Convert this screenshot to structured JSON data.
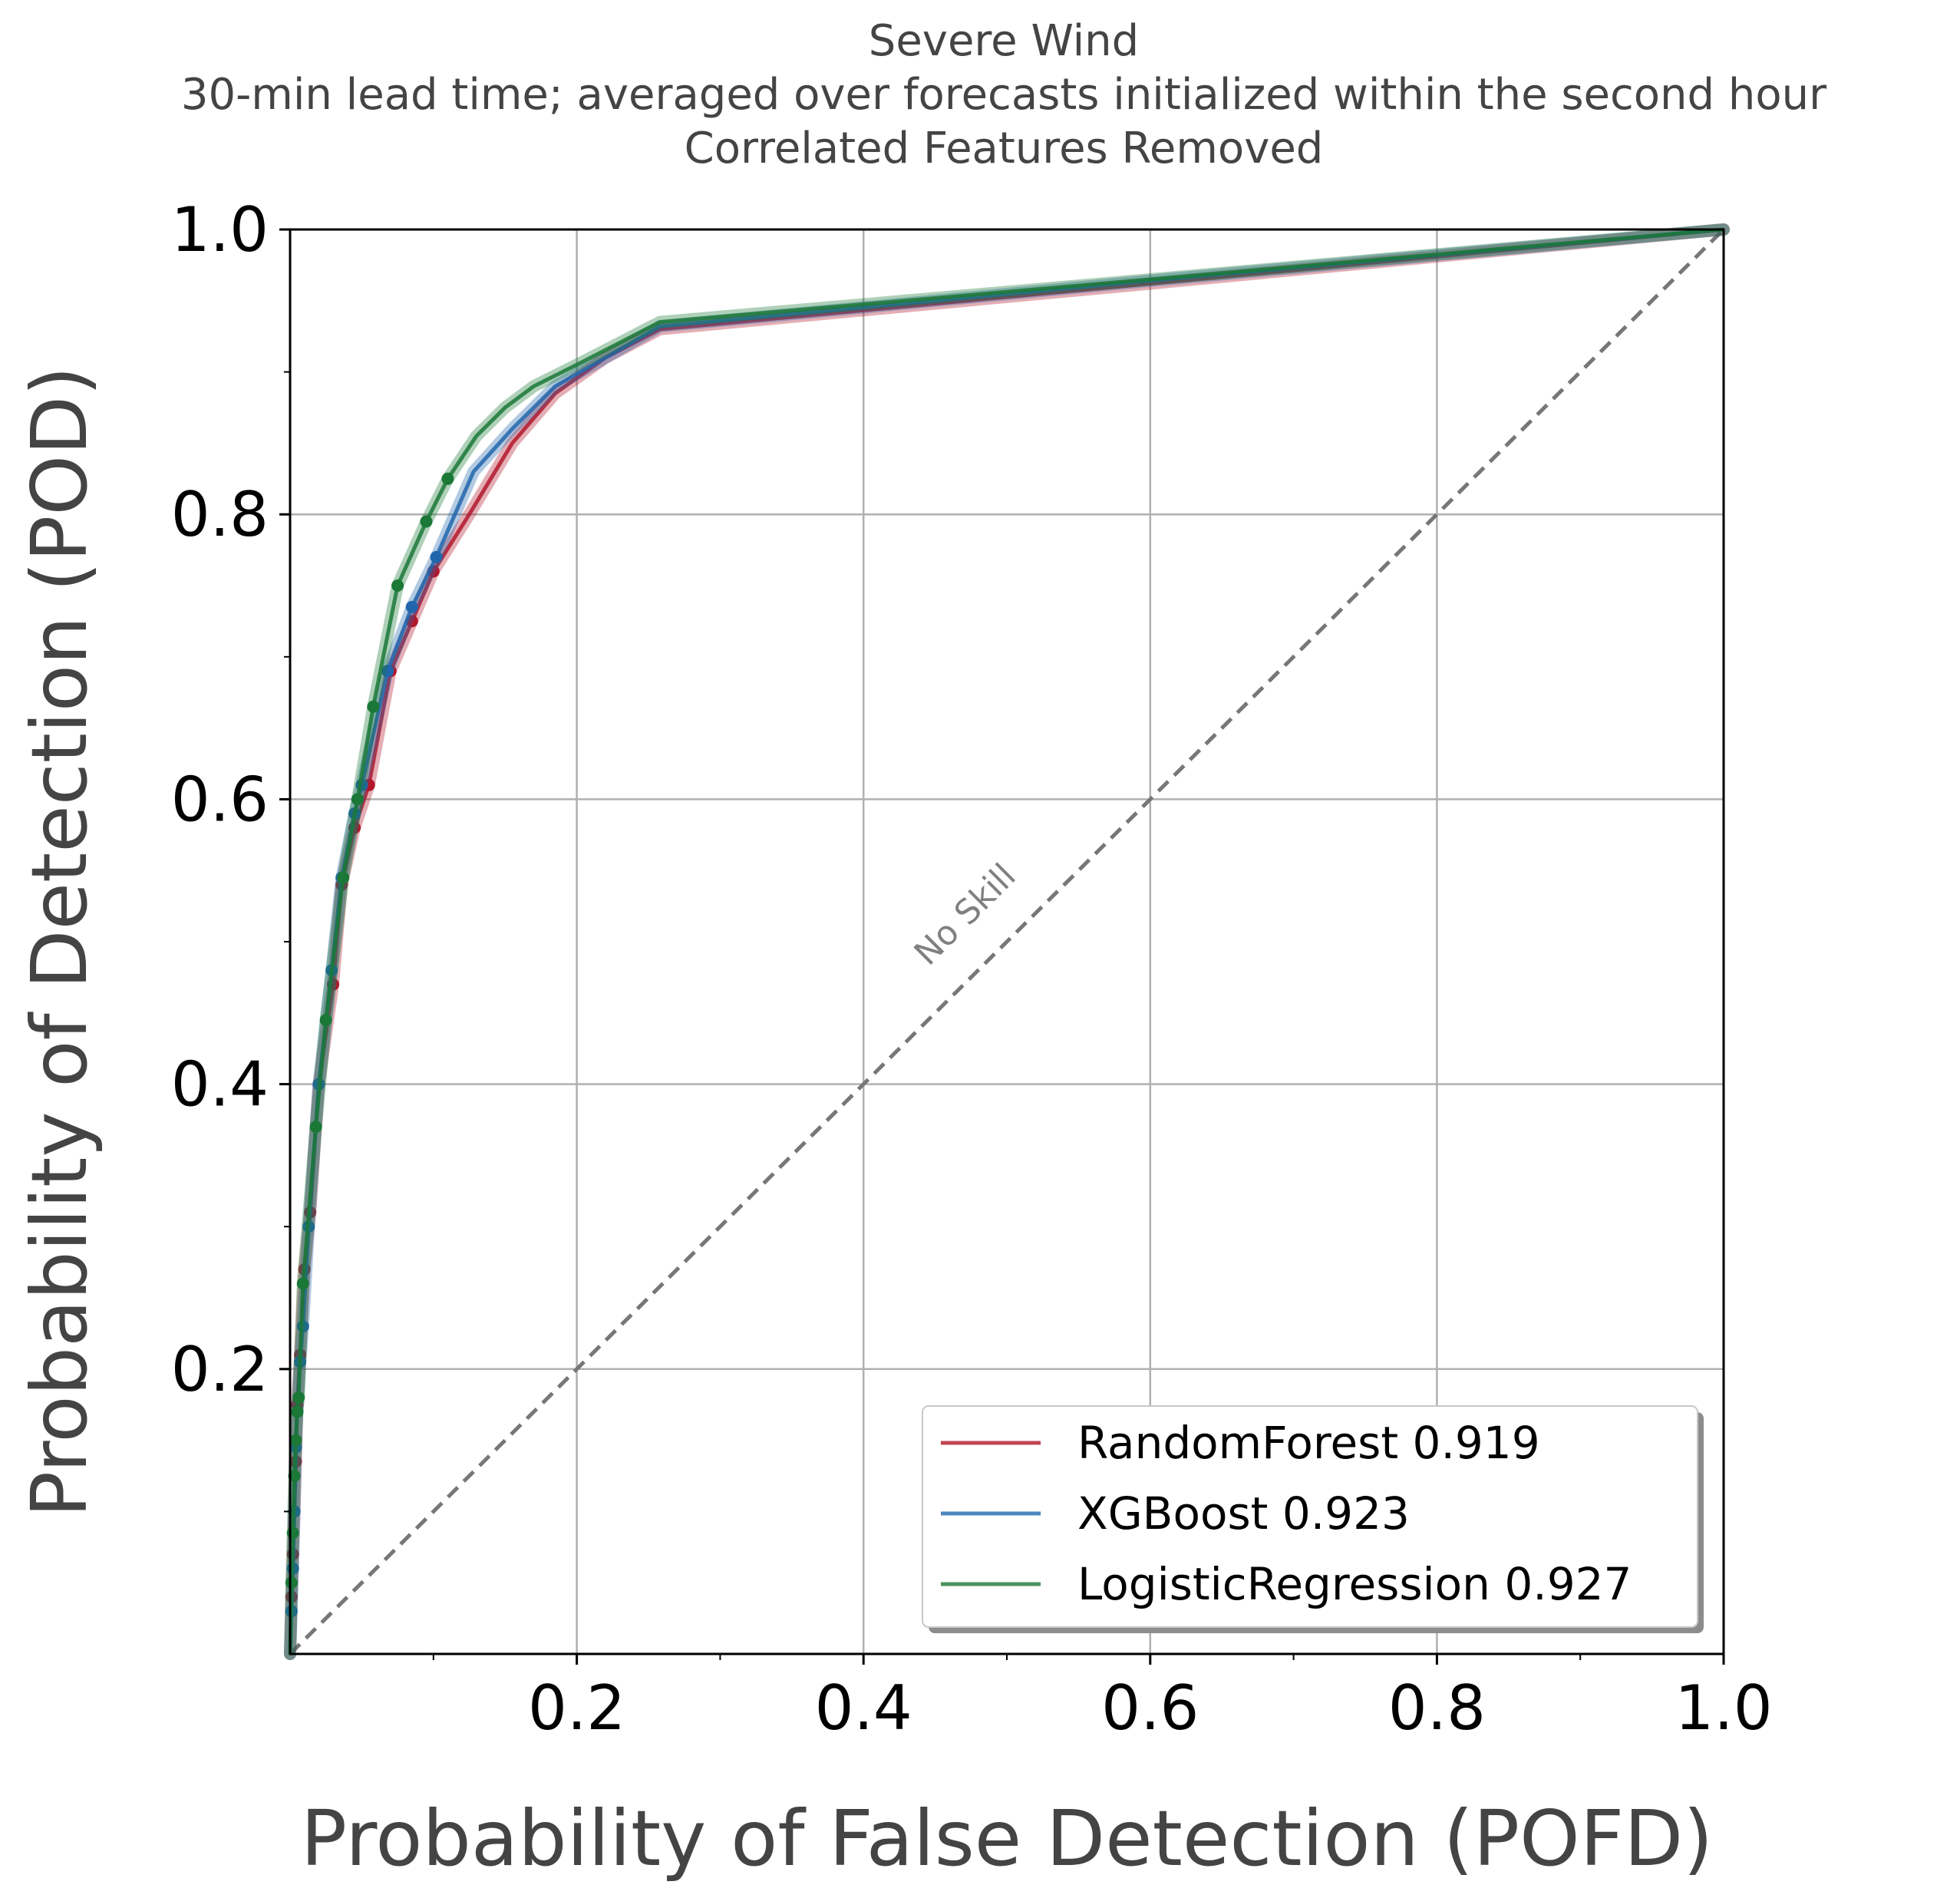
{
  "chart_data": {
    "type": "line",
    "title": "Severe Wind",
    "subtitle": "30-min lead time; averaged over forecasts initialized within the second hour",
    "subtitle2": "Correlated Features Removed",
    "xlabel": "Probability of False Detection (POFD)",
    "ylabel": "Probability of Detection (POD)",
    "xlim": [
      0,
      1
    ],
    "ylim": [
      0,
      1
    ],
    "xticks": [
      "0.2",
      "0.4",
      "0.6",
      "0.8",
      "1.0"
    ],
    "yticks": [
      "0.2",
      "0.4",
      "0.6",
      "0.8",
      "1.0"
    ],
    "grid": true,
    "legend_position": "lower-right",
    "no_skill_label": "No Skill",
    "series": [
      {
        "name": "RandomForest 0.919",
        "color": "#b2182b",
        "x": [
          0,
          0.001,
          0.002,
          0.003,
          0.004,
          0.005,
          0.007,
          0.01,
          0.014,
          0.02,
          0.03,
          0.036,
          0.045,
          0.055,
          0.07,
          0.085,
          0.1,
          0.125,
          0.155,
          0.185,
          0.22,
          0.258,
          0.6,
          1.0
        ],
        "y": [
          0,
          0.04,
          0.07,
          0.1,
          0.135,
          0.175,
          0.21,
          0.27,
          0.31,
          0.4,
          0.47,
          0.54,
          0.58,
          0.61,
          0.69,
          0.725,
          0.76,
          0.8,
          0.85,
          0.885,
          0.91,
          0.93,
          0.962,
          1.0
        ]
      },
      {
        "name": "XGBoost 0.923",
        "color": "#2166ac",
        "x": [
          0,
          0.001,
          0.002,
          0.003,
          0.004,
          0.005,
          0.007,
          0.009,
          0.013,
          0.02,
          0.029,
          0.036,
          0.045,
          0.05,
          0.068,
          0.085,
          0.102,
          0.128,
          0.155,
          0.185,
          0.22,
          0.258,
          0.6,
          1.0
        ],
        "y": [
          0,
          0.03,
          0.06,
          0.1,
          0.145,
          0.17,
          0.205,
          0.23,
          0.3,
          0.4,
          0.48,
          0.545,
          0.59,
          0.61,
          0.69,
          0.735,
          0.77,
          0.83,
          0.86,
          0.89,
          0.91,
          0.932,
          0.964,
          1.0
        ]
      },
      {
        "name": "LogisticRegression 0.927",
        "color": "#1b7837",
        "x": [
          0,
          0.001,
          0.002,
          0.003,
          0.004,
          0.005,
          0.006,
          0.009,
          0.018,
          0.025,
          0.037,
          0.047,
          0.058,
          0.075,
          0.095,
          0.11,
          0.13,
          0.15,
          0.17,
          0.2,
          0.258,
          0.6,
          1.0
        ],
        "y": [
          0,
          0.05,
          0.085,
          0.125,
          0.15,
          0.17,
          0.18,
          0.26,
          0.37,
          0.445,
          0.545,
          0.6,
          0.665,
          0.75,
          0.795,
          0.825,
          0.855,
          0.875,
          0.89,
          0.905,
          0.935,
          0.965,
          1.0
        ]
      }
    ]
  }
}
